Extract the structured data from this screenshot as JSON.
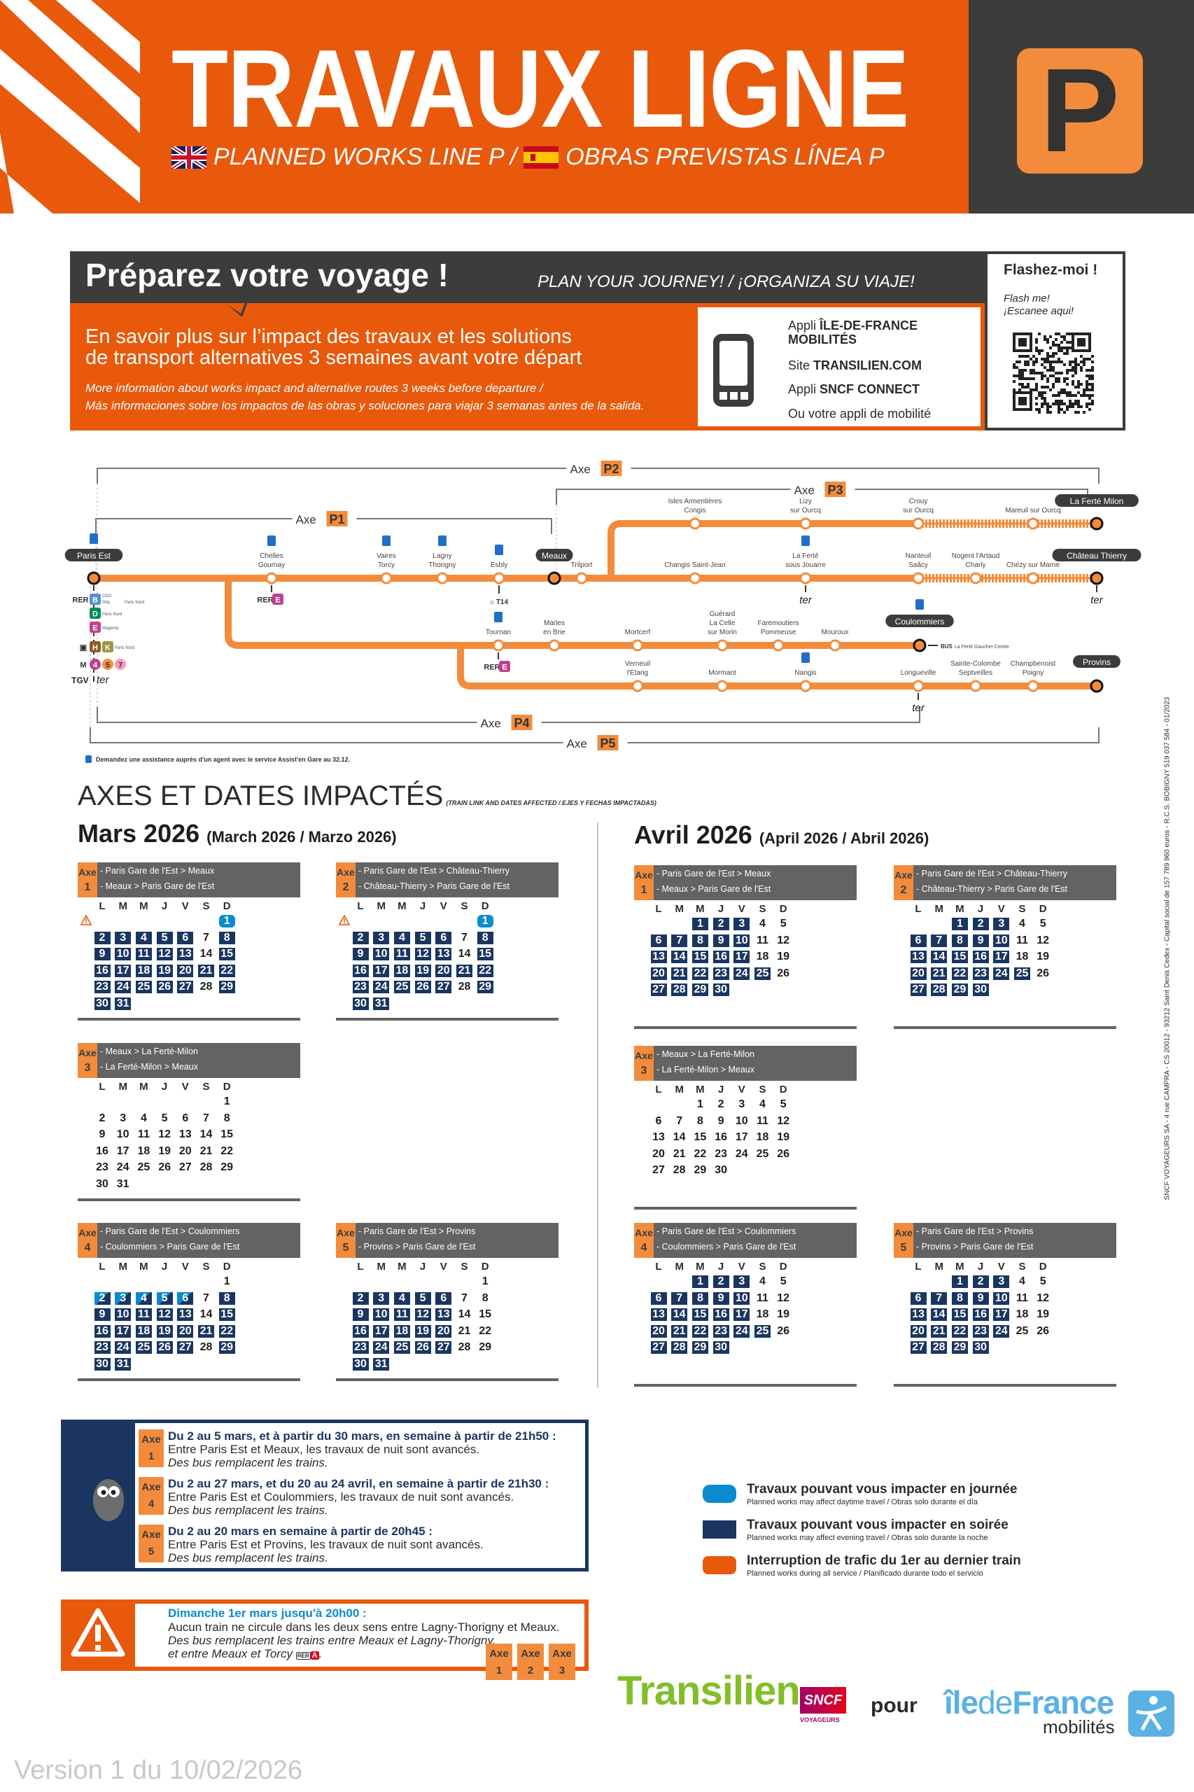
{
  "header": {
    "title": "TRAVAUX LIGNE",
    "line_letter": "P",
    "subtitle_en": "PLANNED WORKS LINE P /",
    "subtitle_es": "OBRAS PREVISTAS LÍNEA P",
    "colors": {
      "orange": "#e8590c",
      "axe_orange": "#f28c3c",
      "dark": "#3c3c3b"
    }
  },
  "prepare": {
    "title": "Préparez votre voyage !",
    "subtitle": "PLAN YOUR JOURNEY! / ¡ORGANIZA SU VIAJE!",
    "main_line1": "En savoir plus sur l’impact des travaux et les solutions",
    "main_line2": "de transport alternatives 3 semaines avant votre départ",
    "en": "More information about works impact and alternative routes 3 weeks before departure /",
    "es": "Más informaciones sobre los impactos de las obras y soluciones para viajar 3 semanas antes de la salida.",
    "apps": [
      {
        "prefix": "Appli ",
        "bold": "ÎLE-DE-FRANCE MOBILITÉS"
      },
      {
        "prefix": "Site ",
        "bold": "TRANSILIEN.COM"
      },
      {
        "prefix": "Appli ",
        "bold": "SNCF CONNECT"
      },
      {
        "prefix": "Ou votre appli de mobilité",
        "bold": ""
      }
    ],
    "qr_title": "Flashez-moi !",
    "qr_sub1": "Flash me!",
    "qr_sub2": "¡Escanee aqui!"
  },
  "map": {
    "axe_word": "Axe",
    "axes": [
      "P1",
      "P2",
      "P3",
      "P4",
      "P5"
    ],
    "main": [
      {
        "name": [
          "Paris Est"
        ],
        "terminus": true,
        "assist": true
      },
      {
        "name": [
          "Chelles",
          "Gournay"
        ],
        "assist": true
      },
      {
        "name": [
          "Vaires",
          "Torcy"
        ],
        "assist": true
      },
      {
        "name": [
          "Lagny",
          "Thorigny"
        ],
        "assist": true
      },
      {
        "name": [
          "Esbly"
        ],
        "assist": true
      },
      {
        "name": [
          "Meaux"
        ],
        "terminus": true
      },
      {
        "name": [
          "Trilport"
        ]
      },
      {
        "name": [
          "Changis Saint-Jean"
        ]
      },
      {
        "name": [
          "La Ferté",
          "sous Jouarre"
        ],
        "assist": true
      },
      {
        "name": [
          "Nanteuil",
          "Saâcy"
        ]
      },
      {
        "name": [
          "Nogent l'Artaud",
          "Charly"
        ]
      },
      {
        "name": [
          "Chézy sur Marne"
        ]
      },
      {
        "name": [
          "Château Thierry"
        ],
        "terminus": true
      }
    ],
    "p3": [
      {
        "name": [
          "Isles Armentières",
          "Congis"
        ]
      },
      {
        "name": [
          "Lizy",
          "sur Ourcq"
        ]
      },
      {
        "name": [
          "Crouy",
          "sur Ourcq"
        ]
      },
      {
        "name": [
          "Mareuil sur Ourcq"
        ]
      },
      {
        "name": [
          "La Ferté Milon"
        ],
        "terminus": true
      }
    ],
    "p4": [
      {
        "name": [
          "Tournan"
        ],
        "assist": true
      },
      {
        "name": [
          "Marles",
          "en Brie"
        ]
      },
      {
        "name": [
          "Mortcerf"
        ]
      },
      {
        "name": [
          "Guérard",
          "La Celle",
          "sur Morin"
        ]
      },
      {
        "name": [
          "Faremoutiers",
          "Pommeuse"
        ]
      },
      {
        "name": [
          "Mouroux"
        ]
      },
      {
        "name": [
          "Coulommiers"
        ],
        "terminus": true,
        "assist": true
      }
    ],
    "p5": [
      {
        "name": [
          "Verneuil",
          "l'Etang"
        ]
      },
      {
        "name": [
          "Mormant"
        ]
      },
      {
        "name": [
          "Nangis"
        ],
        "assist": true
      },
      {
        "name": [
          "Longueville"
        ]
      },
      {
        "name": [
          "Sainte-Colombe",
          "Septveilles"
        ]
      },
      {
        "name": [
          "Champbenoist",
          "Poigny"
        ]
      },
      {
        "name": [
          "Provins"
        ],
        "terminus": true
      }
    ],
    "paris_connections": {
      "rer_b_dest1": "CDG",
      "rer_b_dest2": "Orly",
      "rer_b_station": "Paris Nord",
      "rer_d_station": "Paris Nord",
      "rer_e_station": "Magenta",
      "hk_station": "Paris Nord",
      "rer": "RER",
      "b": "B",
      "d": "D",
      "e": "E",
      "h": "H",
      "k": "K",
      "m": "M",
      "metro": [
        "4",
        "5",
        "7"
      ],
      "tgv": "TGV",
      "ter": "ter"
    },
    "tram": "T14",
    "bus": "BUS",
    "bus_dest": "La Ferté Gaucher Centre",
    "footnote": "Demandez une assistance auprès d'un agent avec le service Assist'en Gare au 32.12."
  },
  "axes_section": {
    "title": "AXES ET DATES IMPACTÉS",
    "subtitle": "(TRAIN LINK AND DATES AFFECTED / EJES Y FECHAS IMPACTADAS)"
  },
  "calendars": [
    {
      "month": "Mars 2026",
      "month_sub": "(March 2026 / Marzo 2026)",
      "days_in_month": 31,
      "first_weekday": 7,
      "weekdays": [
        "L",
        "M",
        "M",
        "J",
        "V",
        "S",
        "D"
      ],
      "axes": [
        {
          "axe": "Axe",
          "num": "1",
          "routes": [
            "- Paris Gare de l'Est > Meaux",
            "- Meaux > Paris Gare de l'Est"
          ],
          "warning": true,
          "daytime": [
            1
          ],
          "split": [],
          "evening": [
            2,
            3,
            4,
            5,
            6,
            8,
            9,
            10,
            11,
            12,
            13,
            15,
            16,
            17,
            18,
            19,
            20,
            21,
            22,
            23,
            24,
            25,
            26,
            27,
            29,
            30,
            31
          ]
        },
        {
          "axe": "Axe",
          "num": "2",
          "routes": [
            "- Paris Gare de l'Est > Château-Thierry",
            "- Château-Thierry > Paris Gare de l'Est"
          ],
          "warning": true,
          "daytime": [
            1
          ],
          "split": [],
          "evening": [
            2,
            3,
            4,
            5,
            6,
            8,
            9,
            10,
            11,
            12,
            13,
            15,
            16,
            17,
            18,
            19,
            20,
            21,
            22,
            23,
            24,
            25,
            26,
            27,
            29,
            30,
            31
          ]
        },
        {
          "axe": "Axe",
          "num": "3",
          "routes": [
            "- Meaux > La Ferté-Milon",
            "- La Ferté-Milon > Meaux"
          ],
          "warning": false,
          "daytime": [],
          "split": [],
          "evening": []
        },
        {
          "axe": "Axe",
          "num": "4",
          "routes": [
            "- Paris Gare de l'Est > Coulommiers",
            "- Coulommiers > Paris Gare de l'Est"
          ],
          "warning": false,
          "daytime": [],
          "split": [
            2,
            3,
            4,
            5,
            6
          ],
          "evening": [
            8,
            9,
            10,
            11,
            12,
            13,
            15,
            16,
            17,
            18,
            19,
            20,
            21,
            22,
            23,
            24,
            25,
            26,
            27,
            29,
            30,
            31
          ]
        },
        {
          "axe": "Axe",
          "num": "5",
          "routes": [
            "- Paris Gare de l'Est > Provins",
            "- Provins > Paris Gare de l'Est"
          ],
          "warning": false,
          "daytime": [],
          "split": [],
          "evening": [
            2,
            3,
            4,
            5,
            6,
            9,
            10,
            11,
            12,
            13,
            16,
            17,
            18,
            19,
            20,
            23,
            24,
            25,
            26,
            27,
            30,
            31
          ]
        }
      ]
    },
    {
      "month": "Avril 2026",
      "month_sub": "(April 2026 / Abril 2026)",
      "days_in_month": 30,
      "first_weekday": 3,
      "weekdays": [
        "L",
        "M",
        "M",
        "J",
        "V",
        "S",
        "D"
      ],
      "axes": [
        {
          "axe": "Axe",
          "num": "1",
          "routes": [
            "- Paris Gare de l'Est > Meaux",
            "- Meaux > Paris Gare de l'Est"
          ],
          "warning": false,
          "daytime": [],
          "split": [],
          "evening": [
            1,
            2,
            3,
            6,
            7,
            8,
            9,
            10,
            13,
            14,
            15,
            16,
            17,
            20,
            21,
            22,
            23,
            24,
            25,
            27,
            28,
            29,
            30
          ]
        },
        {
          "axe": "Axe",
          "num": "2",
          "routes": [
            "- Paris Gare de l'Est > Château-Thierry",
            "- Château-Thierry > Paris Gare de l'Est"
          ],
          "warning": false,
          "daytime": [],
          "split": [],
          "evening": [
            1,
            2,
            3,
            6,
            7,
            8,
            9,
            10,
            13,
            14,
            15,
            16,
            17,
            20,
            21,
            22,
            23,
            24,
            25,
            27,
            28,
            29,
            30
          ]
        },
        {
          "axe": "Axe",
          "num": "3",
          "routes": [
            "- Meaux > La Ferté-Milon",
            "- La Ferté-Milon > Meaux"
          ],
          "warning": false,
          "daytime": [],
          "split": [],
          "evening": []
        },
        {
          "axe": "Axe",
          "num": "4",
          "routes": [
            "- Paris Gare de l'Est > Coulommiers",
            "- Coulommiers > Paris Gare de l'Est"
          ],
          "warning": false,
          "daytime": [],
          "split": [],
          "evening": [
            1,
            2,
            3,
            6,
            7,
            8,
            9,
            10,
            13,
            14,
            15,
            16,
            17,
            20,
            21,
            22,
            23,
            24,
            25,
            27,
            28,
            29,
            30
          ]
        },
        {
          "axe": "Axe",
          "num": "5",
          "routes": [
            "- Paris Gare de l'Est > Provins",
            "- Provins > Paris Gare de l'Est"
          ],
          "warning": false,
          "daytime": [],
          "split": [],
          "evening": [
            1,
            2,
            3,
            6,
            7,
            8,
            9,
            10,
            13,
            14,
            15,
            16,
            17,
            20,
            21,
            22,
            23,
            24,
            27,
            28,
            29,
            30
          ]
        }
      ]
    }
  ],
  "night_notes": [
    {
      "axe": "Axe",
      "num": "1",
      "heading": "Du 2 au 5 mars, et à partir du 30 mars, en semaine à partir de 21h50 :",
      "text": "Entre Paris Est et Meaux, les travaux de nuit sont avancés.",
      "italic": "Des bus remplacent les trains."
    },
    {
      "axe": "Axe",
      "num": "4",
      "heading": "Du 2 au 27 mars, et du 20 au 24 avril, en semaine à partir de 21h30 :",
      "text": "Entre Paris Est et Coulommiers, les travaux de nuit sont avancés.",
      "italic": "Des bus remplacent les trains."
    },
    {
      "axe": "Axe",
      "num": "5",
      "heading": "Du 2 au 20 mars en semaine à partir de 20h45 :",
      "text": "Entre Paris Est et Provins, les travaux de nuit sont avancés.",
      "italic": "Des bus remplacent les trains."
    }
  ],
  "warning_note": {
    "heading": "Dimanche 1er mars jusqu'à 20h00 :",
    "text": "Aucun train ne circule dans les deux sens entre Lagny-Thorigny et Meaux.",
    "italic1": "Des bus remplacent les trains entre Meaux et Lagny-Thorigny,",
    "italic2": "et entre Meaux et Torcy",
    "rer": "RER",
    "rer_line": "A",
    "axes": [
      {
        "axe": "Axe",
        "num": "1"
      },
      {
        "axe": "Axe",
        "num": "2"
      },
      {
        "axe": "Axe",
        "num": "3"
      }
    ]
  },
  "legend": [
    {
      "title": "Travaux pouvant vous impacter en journée",
      "sub": "Planned works may affect daytime travel / Obras solo durante el día",
      "color": "#0a8bd0"
    },
    {
      "title": "Travaux pouvant vous impacter en soirée",
      "sub": "Planned works may affect evening travel / Obras solo durante la noche",
      "color": "#1a3660"
    },
    {
      "title": "Interruption de trafic du 1er au dernier train",
      "sub": "Planned works during all service / Planificado durante todo el servicio",
      "color": "#e8590c"
    }
  ],
  "logos": {
    "transilien": "Transilien",
    "sncf": "SNCF",
    "sncf_sub": "VOYAGEURS",
    "pour": "pour",
    "idf1": "île",
    "idf2": "de",
    "idf3": "France",
    "idf_sub": "mobilités"
  },
  "version": "Version 1 du 10/02/2026",
  "legal": "SNCF VOYAGEURS SA - 4 rue CAMPRA - CS 20012 - 93212 Saint Denis Cedex - Capital social de 157 789 960 euros - R.C.S. BOBIGNY 519 037 584 - 01/2023"
}
